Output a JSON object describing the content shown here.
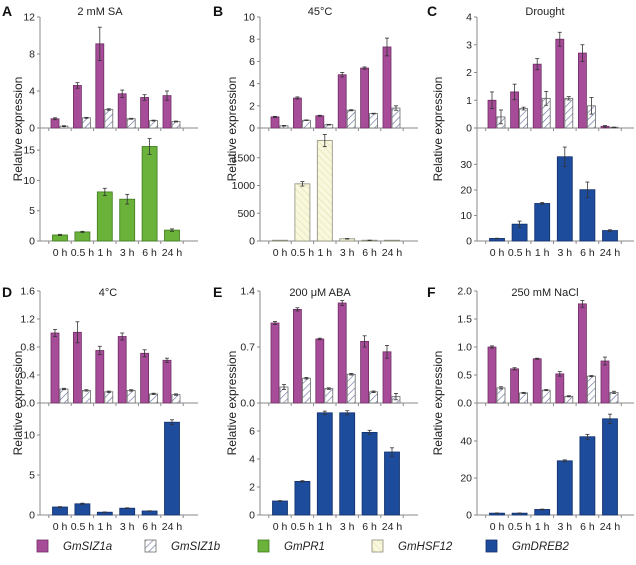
{
  "chart_data": [
    {
      "id": "A",
      "type": "bar",
      "letter": "A",
      "title": "2 mM SA",
      "ylabel": "Relative expression",
      "categories": [
        "0 h",
        "0.5 h",
        "1 h",
        "3 h",
        "6 h",
        "24 h"
      ],
      "top": {
        "ylim": [
          0,
          12
        ],
        "yticks": [
          0,
          4,
          8,
          12
        ],
        "tick_labels": [
          "0",
          "4",
          "8",
          "12"
        ],
        "series": [
          {
            "name": "GmSIZ1a",
            "values": [
              1.0,
              4.6,
              9.1,
              3.7,
              3.3,
              3.5
            ],
            "errors": [
              0.1,
              0.3,
              1.8,
              0.4,
              0.3,
              0.5
            ]
          },
          {
            "name": "GmSIZ1b",
            "values": [
              0.2,
              1.1,
              2.0,
              1.0,
              0.8,
              0.7
            ],
            "errors": [
              0.05,
              0.05,
              0.08,
              0.05,
              0.05,
              0.05
            ]
          }
        ]
      },
      "bottom": {
        "ylim": [
          0,
          17
        ],
        "yticks": [
          0,
          5,
          10,
          15
        ],
        "tick_labels": [
          "0",
          "5",
          "10",
          "15"
        ],
        "series": [
          {
            "name": "GmPR1",
            "values": [
              1.0,
              1.5,
              8.1,
              6.9,
              15.6,
              1.8
            ],
            "errors": [
              0.1,
              0.1,
              0.6,
              0.8,
              1.3,
              0.2
            ]
          }
        ]
      }
    },
    {
      "id": "B",
      "type": "bar",
      "letter": "B",
      "title": "45°C",
      "ylabel": "Relative expression",
      "categories": [
        "0 h",
        "0.5 h",
        "1 h",
        "3 h",
        "6 h",
        "24 h"
      ],
      "top": {
        "ylim": [
          0,
          10
        ],
        "yticks": [
          0,
          2,
          4,
          6,
          8,
          10
        ],
        "tick_labels": [
          "0",
          "2",
          "4",
          "6",
          "8",
          "10"
        ],
        "series": [
          {
            "name": "GmSIZ1a",
            "values": [
              1.0,
              2.7,
              1.1,
              4.8,
              5.4,
              7.3
            ],
            "errors": [
              0.05,
              0.1,
              0.05,
              0.2,
              0.1,
              0.8
            ]
          },
          {
            "name": "GmSIZ1b",
            "values": [
              0.2,
              0.7,
              0.3,
              1.6,
              1.3,
              1.8
            ],
            "errors": [
              0.03,
              0.03,
              0.03,
              0.05,
              0.03,
              0.2
            ]
          }
        ]
      },
      "bottom": {
        "ylim": [
          0,
          2000
        ],
        "yticks": [
          0,
          500,
          1000,
          1500
        ],
        "tick_labels": [
          "0",
          "500",
          "1000",
          "1500"
        ],
        "series": [
          {
            "name": "GmHSF12",
            "values": [
              1,
              1030,
              1810,
              40,
              12,
              2
            ],
            "errors": [
              0,
              40,
              110,
              5,
              3,
              0
            ]
          }
        ]
      }
    },
    {
      "id": "C",
      "type": "bar",
      "letter": "C",
      "title": "Drought",
      "ylabel": "Relative expression",
      "categories": [
        "0 h",
        "0.5 h",
        "1 h",
        "3 h",
        "6 h",
        "24 h"
      ],
      "top": {
        "ylim": [
          0,
          4
        ],
        "yticks": [
          0,
          1,
          2,
          3,
          4
        ],
        "tick_labels": [
          "0",
          "1",
          "2",
          "3",
          "4"
        ],
        "series": [
          {
            "name": "GmSIZ1a",
            "values": [
              1.0,
              1.3,
              2.3,
              3.2,
              2.7,
              0.06
            ],
            "errors": [
              0.3,
              0.28,
              0.2,
              0.25,
              0.3,
              0.03
            ]
          },
          {
            "name": "GmSIZ1b",
            "values": [
              0.4,
              0.7,
              1.07,
              1.07,
              0.8,
              0.02
            ],
            "errors": [
              0.25,
              0.05,
              0.25,
              0.06,
              0.3,
              0.01
            ]
          }
        ]
      },
      "bottom": {
        "ylim": [
          0,
          38
        ],
        "yticks": [
          0,
          10,
          20,
          30
        ],
        "tick_labels": [
          "0",
          "10",
          "20",
          "30"
        ],
        "series": [
          {
            "name": "GmDREB2",
            "values": [
              1.0,
              6.6,
              14.7,
              33.0,
              20.1,
              4.1
            ],
            "errors": [
              0.1,
              1.2,
              0.4,
              3.8,
              3.0,
              0.3
            ]
          }
        ]
      }
    },
    {
      "id": "D",
      "type": "bar",
      "letter": "D",
      "title": "4°C",
      "ylabel": "Relative expression",
      "categories": [
        "0 h",
        "0.5 h",
        "1 h",
        "3 h",
        "6 h",
        "24 h"
      ],
      "top": {
        "ylim": [
          0,
          1.6
        ],
        "yticks": [
          0,
          0.4,
          0.8,
          1.2,
          1.6
        ],
        "tick_labels": [
          "0.0",
          "0.4",
          "0.8",
          "1.2",
          "1.6"
        ],
        "series": [
          {
            "name": "GmSIZ1a",
            "values": [
              1.0,
              1.01,
              0.75,
              0.95,
              0.71,
              0.61
            ],
            "errors": [
              0.05,
              0.15,
              0.06,
              0.05,
              0.05,
              0.03
            ]
          },
          {
            "name": "GmSIZ1b",
            "values": [
              0.2,
              0.18,
              0.16,
              0.18,
              0.13,
              0.12
            ],
            "errors": [
              0.01,
              0.01,
              0.01,
              0.01,
              0.01,
              0.01
            ]
          }
        ]
      },
      "bottom": {
        "ylim": [
          0,
          13
        ],
        "yticks": [
          0,
          5,
          10
        ],
        "tick_labels": [
          "0",
          "5",
          "10"
        ],
        "series": [
          {
            "name": "GmDREB2",
            "values": [
              1.0,
              1.4,
              0.35,
              0.85,
              0.5,
              11.6
            ],
            "errors": [
              0.05,
              0.08,
              0.03,
              0.05,
              0.03,
              0.3
            ]
          }
        ]
      }
    },
    {
      "id": "E",
      "type": "bar",
      "letter": "E",
      "title": "200 μM ABA",
      "ylabel": "Relative expression",
      "categories": [
        "0 h",
        "0.5 h",
        "1 h",
        "3 h",
        "6 h",
        "24 h"
      ],
      "top": {
        "ylim": [
          0,
          1.4
        ],
        "yticks": [
          0,
          0.7,
          1.4
        ],
        "tick_labels": [
          "0.0",
          "0.7",
          "1.4"
        ],
        "series": [
          {
            "name": "GmSIZ1a",
            "values": [
              1.0,
              1.17,
              0.8,
              1.25,
              0.77,
              0.64
            ],
            "errors": [
              0.02,
              0.02,
              0.01,
              0.03,
              0.07,
              0.08
            ]
          },
          {
            "name": "GmSIZ1b",
            "values": [
              0.2,
              0.31,
              0.18,
              0.36,
              0.14,
              0.08
            ],
            "errors": [
              0.03,
              0.01,
              0.01,
              0.01,
              0.01,
              0.04
            ]
          }
        ]
      },
      "bottom": {
        "ylim": [
          0,
          8
        ],
        "yticks": [
          0,
          2,
          4,
          6
        ],
        "tick_labels": [
          "0",
          "2",
          "4",
          "6"
        ],
        "series": [
          {
            "name": "GmDREB2",
            "values": [
              1.0,
              2.4,
              7.3,
              7.3,
              5.9,
              4.5
            ],
            "errors": [
              0.03,
              0.05,
              0.12,
              0.15,
              0.15,
              0.3
            ]
          }
        ]
      }
    },
    {
      "id": "F",
      "type": "bar",
      "letter": "F",
      "title": "250 mM NaCl",
      "ylabel": "Relative expression",
      "categories": [
        "0 h",
        "0.5 h",
        "1 h",
        "3 h",
        "6 h",
        "24 h"
      ],
      "top": {
        "ylim": [
          0,
          2.0
        ],
        "yticks": [
          0,
          0.5,
          1.0,
          1.5,
          2.0
        ],
        "tick_labels": [
          "0.0",
          "0.5",
          "1.0",
          "1.5",
          "2.0"
        ],
        "series": [
          {
            "name": "GmSIZ1a",
            "values": [
              1.0,
              0.61,
              0.79,
              0.52,
              1.77,
              0.75
            ],
            "errors": [
              0.02,
              0.02,
              0.01,
              0.04,
              0.06,
              0.07
            ]
          },
          {
            "name": "GmSIZ1b",
            "values": [
              0.27,
              0.18,
              0.23,
              0.12,
              0.48,
              0.19
            ],
            "errors": [
              0.02,
              0.01,
              0.01,
              0.01,
              0.01,
              0.02
            ]
          }
        ]
      },
      "bottom": {
        "ylim": [
          0,
          60
        ],
        "yticks": [
          0,
          20,
          40
        ],
        "tick_labels": [
          "0",
          "20",
          "40"
        ],
        "series": [
          {
            "name": "GmDREB2",
            "values": [
              1.0,
              1.0,
              3.0,
              29.3,
              42.3,
              52.0
            ],
            "errors": [
              0.1,
              0.1,
              0.2,
              0.5,
              1.3,
              2.5
            ]
          }
        ]
      }
    }
  ],
  "legend": [
    {
      "name": "GmSIZ1a",
      "style": "solid",
      "color": "#a64c98"
    },
    {
      "name": "GmSIZ1b",
      "style": "hatch",
      "color": "#5a6a9a"
    },
    {
      "name": "GmPR1",
      "style": "solid",
      "color": "#6ab23a"
    },
    {
      "name": "GmHSF12",
      "style": "hatch-light",
      "color": "#f7f5d5"
    },
    {
      "name": "GmDREB2",
      "style": "solid",
      "color": "#1e4c9c"
    }
  ]
}
